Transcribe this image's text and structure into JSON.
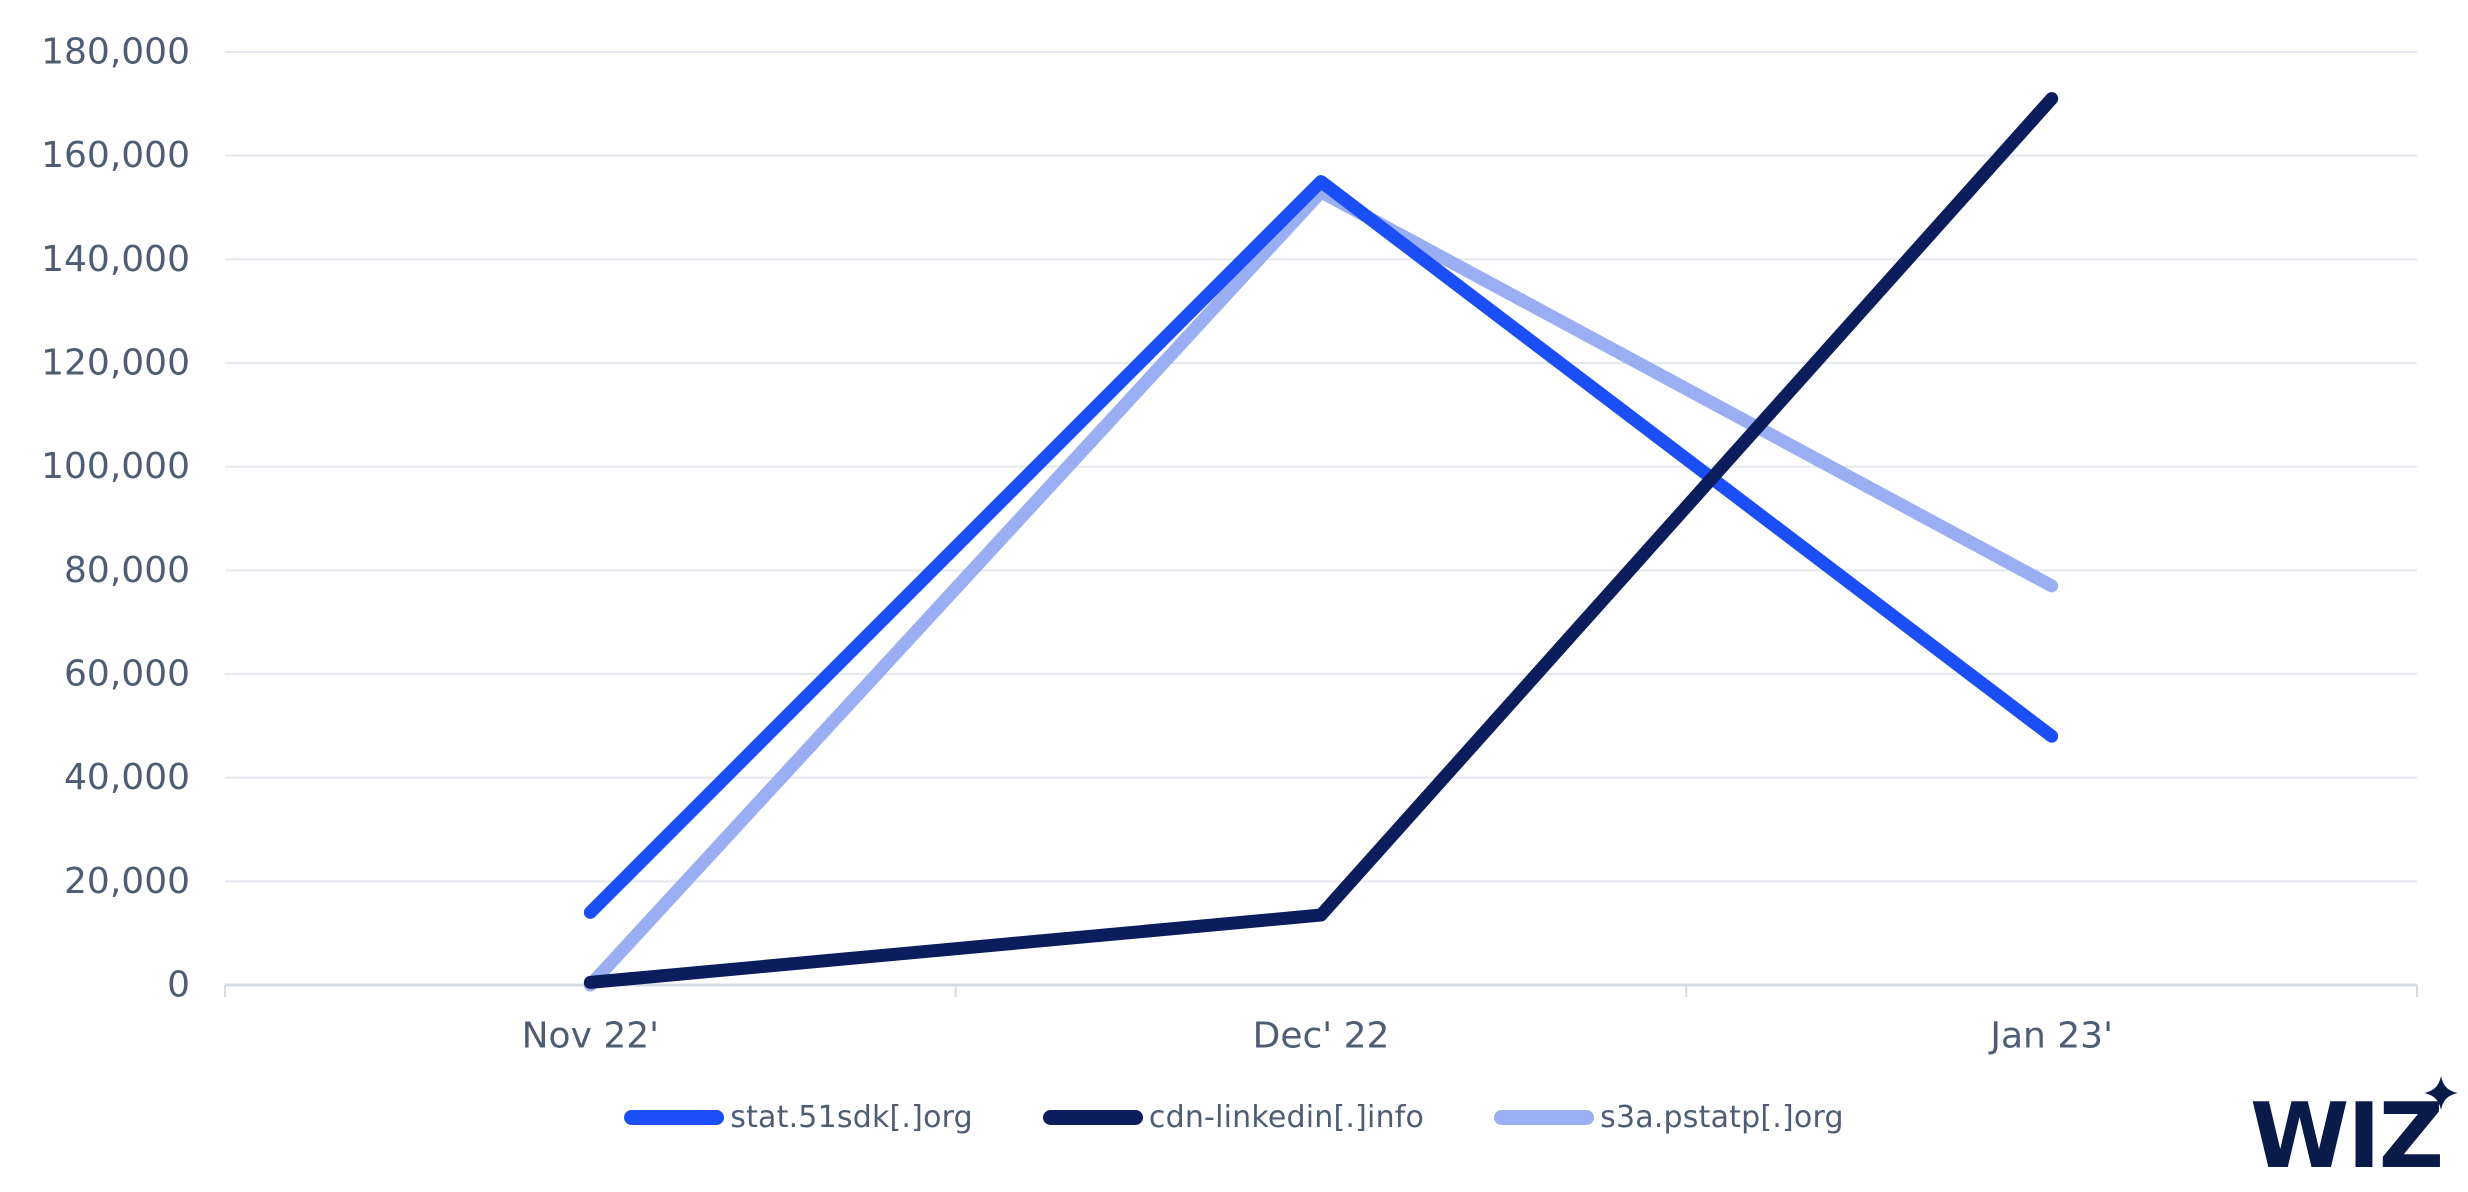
{
  "chart_data": {
    "type": "line",
    "categories": [
      "Nov 22'",
      "Dec' 22",
      "Jan 23'"
    ],
    "series": [
      {
        "name": "stat.51sdk[.]org",
        "color": "#1b4ef5",
        "values": [
          14000,
          155000,
          48000
        ]
      },
      {
        "name": "cdn-linkedin[.]info",
        "color": "#0b1d5c",
        "values": [
          500,
          13500,
          171000
        ]
      },
      {
        "name": "s3a.pstatp[.]org",
        "color": "#99aef3",
        "values": [
          0,
          153000,
          77000
        ]
      }
    ],
    "draw_order": [
      2,
      0,
      1
    ],
    "y_axis": {
      "min": 0,
      "max": 180000,
      "step": 20000,
      "tick_labels": [
        "0",
        "20,000",
        "40,000",
        "60,000",
        "80,000",
        "100,000",
        "120,000",
        "140,000",
        "160,000",
        "180,000"
      ]
    },
    "x_axis": {
      "tick_count": 4
    },
    "grid": "horizontal",
    "legend_position": "bottom",
    "style": {
      "label_color": "#4d5d74",
      "grid_color": "#e4e7ed",
      "axis_color": "#d6dbe3"
    }
  },
  "branding": {
    "logo_text": "WIZ",
    "logo_color": "#0a1b4a"
  }
}
